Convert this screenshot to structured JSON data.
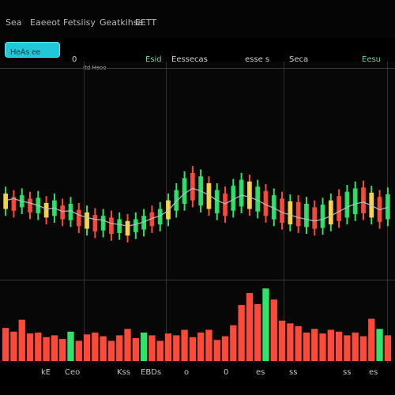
{
  "nav": {
    "items": [
      "Sea",
      "Eaeeot",
      "Fetsiisy",
      "Geatkihsa",
      "EETT"
    ]
  },
  "search": {
    "value": "HeAs ee"
  },
  "header": {
    "metrics": [
      {
        "label": "0"
      },
      {
        "label": "Esid"
      },
      {
        "label": "Eessecas"
      },
      {
        "label": "esse s"
      },
      {
        "label": "Seca"
      },
      {
        "label": "Eesu"
      }
    ],
    "subtext": "Itd Heoo"
  },
  "chart_data": {
    "type": "candlestick",
    "colors": {
      "up": "#30e36a",
      "down": "#ff4a3a",
      "neutral": "#ffd84a",
      "line": "#b9c0d0"
    },
    "price_bars": [
      {
        "low": 60,
        "high": 94,
        "up": true
      },
      {
        "low": 58,
        "high": 90,
        "up": false
      },
      {
        "low": 62,
        "high": 92,
        "up": true
      },
      {
        "low": 56,
        "high": 88,
        "up": false
      },
      {
        "low": 55,
        "high": 89,
        "up": true
      },
      {
        "low": 50,
        "high": 83,
        "up": false
      },
      {
        "low": 52,
        "high": 86,
        "up": true
      },
      {
        "low": 48,
        "high": 80,
        "up": false
      },
      {
        "low": 47,
        "high": 82,
        "up": true
      },
      {
        "low": 40,
        "high": 75,
        "up": false
      },
      {
        "low": 37,
        "high": 72,
        "up": true
      },
      {
        "low": 34,
        "high": 69,
        "up": false
      },
      {
        "low": 35,
        "high": 68,
        "up": true
      },
      {
        "low": 31,
        "high": 66,
        "up": false
      },
      {
        "low": 32,
        "high": 64,
        "up": true
      },
      {
        "low": 29,
        "high": 62,
        "up": false
      },
      {
        "low": 33,
        "high": 64,
        "up": true
      },
      {
        "low": 36,
        "high": 68,
        "up": true
      },
      {
        "low": 40,
        "high": 72,
        "up": false
      },
      {
        "low": 42,
        "high": 76,
        "up": true
      },
      {
        "low": 48,
        "high": 86,
        "up": true
      },
      {
        "low": 58,
        "high": 98,
        "up": true
      },
      {
        "low": 66,
        "high": 112,
        "up": true
      },
      {
        "low": 70,
        "high": 118,
        "up": false
      },
      {
        "low": 64,
        "high": 114,
        "up": true
      },
      {
        "low": 60,
        "high": 106,
        "up": false
      },
      {
        "low": 55,
        "high": 98,
        "up": true
      },
      {
        "low": 52,
        "high": 94,
        "up": false
      },
      {
        "low": 58,
        "high": 103,
        "up": true
      },
      {
        "low": 63,
        "high": 110,
        "up": true
      },
      {
        "low": 60,
        "high": 108,
        "up": false
      },
      {
        "low": 57,
        "high": 102,
        "up": true
      },
      {
        "low": 52,
        "high": 97,
        "up": false
      },
      {
        "low": 48,
        "high": 92,
        "up": true
      },
      {
        "low": 44,
        "high": 88,
        "up": false
      },
      {
        "low": 42,
        "high": 85,
        "up": true
      },
      {
        "low": 40,
        "high": 84,
        "up": false
      },
      {
        "low": 39,
        "high": 82,
        "up": true
      },
      {
        "low": 37,
        "high": 78,
        "up": false
      },
      {
        "low": 38,
        "high": 81,
        "up": true
      },
      {
        "low": 42,
        "high": 86,
        "up": true
      },
      {
        "low": 46,
        "high": 91,
        "up": false
      },
      {
        "low": 50,
        "high": 96,
        "up": true
      },
      {
        "low": 54,
        "high": 100,
        "up": true
      },
      {
        "low": 55,
        "high": 101,
        "up": false
      },
      {
        "low": 50,
        "high": 95,
        "up": true
      },
      {
        "low": 45,
        "high": 90,
        "up": false
      },
      {
        "low": 48,
        "high": 93,
        "up": true
      }
    ],
    "line_points": [
      78,
      80,
      77,
      75,
      72,
      68,
      69,
      65,
      66,
      61,
      58,
      56,
      55,
      51,
      50,
      48,
      50,
      53,
      57,
      60,
      66,
      77,
      86,
      92,
      89,
      84,
      78,
      74,
      79,
      84,
      82,
      78,
      73,
      69,
      64,
      61,
      58,
      56,
      54,
      56,
      60,
      65,
      70,
      74,
      76,
      72,
      67,
      70
    ],
    "volume": [
      {
        "v": 36,
        "up": false
      },
      {
        "v": 32,
        "up": false
      },
      {
        "v": 45,
        "up": false
      },
      {
        "v": 30,
        "up": false
      },
      {
        "v": 31,
        "up": false
      },
      {
        "v": 26,
        "up": false
      },
      {
        "v": 28,
        "up": false
      },
      {
        "v": 24,
        "up": false
      },
      {
        "v": 32,
        "up": true
      },
      {
        "v": 22,
        "up": false
      },
      {
        "v": 29,
        "up": false
      },
      {
        "v": 31,
        "up": false
      },
      {
        "v": 27,
        "up": false
      },
      {
        "v": 22,
        "up": false
      },
      {
        "v": 28,
        "up": false
      },
      {
        "v": 35,
        "up": false
      },
      {
        "v": 25,
        "up": false
      },
      {
        "v": 31,
        "up": true
      },
      {
        "v": 28,
        "up": false
      },
      {
        "v": 22,
        "up": false
      },
      {
        "v": 30,
        "up": false
      },
      {
        "v": 28,
        "up": false
      },
      {
        "v": 34,
        "up": false
      },
      {
        "v": 26,
        "up": false
      },
      {
        "v": 31,
        "up": false
      },
      {
        "v": 34,
        "up": false
      },
      {
        "v": 23,
        "up": false
      },
      {
        "v": 27,
        "up": false
      },
      {
        "v": 39,
        "up": false
      },
      {
        "v": 61,
        "up": false
      },
      {
        "v": 74,
        "up": false
      },
      {
        "v": 62,
        "up": false
      },
      {
        "v": 79,
        "up": true
      },
      {
        "v": 67,
        "up": false
      },
      {
        "v": 44,
        "up": false
      },
      {
        "v": 41,
        "up": false
      },
      {
        "v": 38,
        "up": false
      },
      {
        "v": 31,
        "up": false
      },
      {
        "v": 35,
        "up": false
      },
      {
        "v": 30,
        "up": false
      },
      {
        "v": 34,
        "up": false
      },
      {
        "v": 32,
        "up": false
      },
      {
        "v": 28,
        "up": false
      },
      {
        "v": 31,
        "up": false
      },
      {
        "v": 27,
        "up": false
      },
      {
        "v": 46,
        "up": false
      },
      {
        "v": 35,
        "up": true
      },
      {
        "v": 28,
        "up": false
      }
    ]
  },
  "footer": {
    "labels": [
      "kE",
      "Ceo",
      "Kss",
      "EBDs",
      "o",
      "0",
      "es",
      "ss",
      "ss",
      "es"
    ]
  }
}
